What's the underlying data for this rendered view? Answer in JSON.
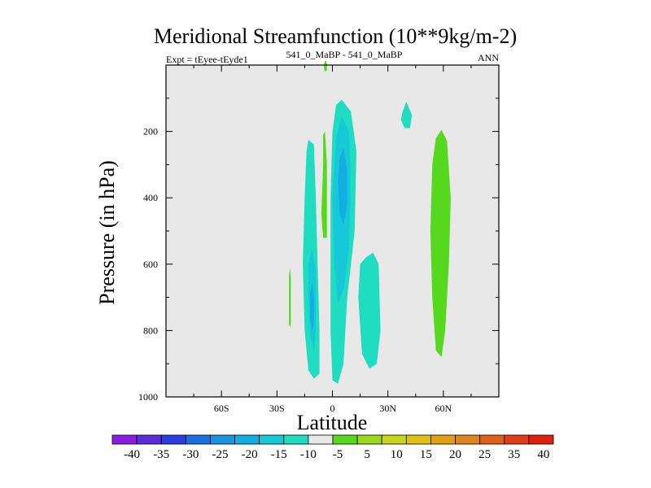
{
  "chart_data": {
    "type": "contour",
    "title": "Meridional Streamfunction (10**9kg/m-2)",
    "subtitle_left": "Expt = tEyee-tEyde1",
    "subtitle_center": "541_0_MaBP - 541_0_MaBP",
    "subtitle_right": "ANN",
    "xlabel": "Latitude",
    "ylabel": "Pressure (in hPa)",
    "xlim": [
      -90,
      90
    ],
    "ylim": [
      1000,
      0
    ],
    "x_ticks": [
      {
        "value": -60,
        "label": "60S"
      },
      {
        "value": -30,
        "label": "30S"
      },
      {
        "value": 0,
        "label": "0"
      },
      {
        "value": 30,
        "label": "30N"
      },
      {
        "value": 60,
        "label": "60N"
      }
    ],
    "y_ticks": [
      {
        "value": 200,
        "label": "200"
      },
      {
        "value": 400,
        "label": "400"
      },
      {
        "value": 600,
        "label": "600"
      },
      {
        "value": 800,
        "label": "800"
      },
      {
        "value": 1000,
        "label": "1000"
      }
    ],
    "background_color": "#e8e8e8",
    "colorbar": {
      "labels": [
        "-40",
        "-35",
        "-30",
        "-25",
        "-20",
        "-15",
        "-10",
        "-5",
        "5",
        "10",
        "15",
        "20",
        "25",
        "35",
        "40"
      ],
      "colors": [
        "#8a1ee0",
        "#5a2ed8",
        "#2c3ee0",
        "#1a6ee0",
        "#1894e0",
        "#12aee0",
        "#16c8d8",
        "#20dcc0",
        "#e8e8e8",
        "#55d81e",
        "#9ad81e",
        "#c8d41e",
        "#e0c014",
        "#e0a012",
        "#e0821e",
        "#e0601a",
        "#e03e18",
        "#e0200e"
      ]
    },
    "regions": [
      {
        "level": "-10 to -5",
        "color": "#20dcc0",
        "outline": [
          [
            -13,
            225
          ],
          [
            -10,
            240
          ],
          [
            -9,
            400
          ],
          [
            -8,
            600
          ],
          [
            -7,
            800
          ],
          [
            -7,
            930
          ],
          [
            -10,
            945
          ],
          [
            -13,
            920
          ],
          [
            -15,
            800
          ],
          [
            -16,
            600
          ],
          [
            -15,
            400
          ],
          [
            -14,
            260
          ]
        ]
      },
      {
        "level": "-10 to -5",
        "color": "#20dcc0",
        "outline": [
          [
            5,
            105
          ],
          [
            10,
            140
          ],
          [
            13,
            260
          ],
          [
            12,
            500
          ],
          [
            8,
            700
          ],
          [
            6,
            900
          ],
          [
            3,
            960
          ],
          [
            0,
            950
          ],
          [
            -1,
            800
          ],
          [
            -1,
            600
          ],
          [
            -1,
            400
          ],
          [
            0,
            200
          ],
          [
            2,
            120
          ]
        ]
      },
      {
        "level": "-10 to -5",
        "color": "#20dcc0",
        "outline": [
          [
            22,
            565
          ],
          [
            25,
            600
          ],
          [
            26,
            800
          ],
          [
            24,
            900
          ],
          [
            20,
            915
          ],
          [
            16,
            870
          ],
          [
            14,
            700
          ],
          [
            15,
            600
          ],
          [
            18,
            580
          ]
        ]
      },
      {
        "level": "-15 to -10",
        "color": "#16c8d8",
        "outline": [
          [
            5,
            155
          ],
          [
            9,
            200
          ],
          [
            10,
            350
          ],
          [
            9,
            550
          ],
          [
            6,
            680
          ],
          [
            3,
            720
          ],
          [
            1,
            600
          ],
          [
            0,
            400
          ],
          [
            2,
            220
          ]
        ]
      },
      {
        "level": "-15 to -10",
        "color": "#16c8d8",
        "outline": [
          [
            -11,
            555
          ],
          [
            -9,
            620
          ],
          [
            -9,
            800
          ],
          [
            -10,
            860
          ],
          [
            -12,
            820
          ],
          [
            -13,
            700
          ],
          [
            -13,
            600
          ]
        ]
      },
      {
        "level": "-20 to -15",
        "color": "#12aee0",
        "outline": [
          [
            6,
            250
          ],
          [
            8,
            320
          ],
          [
            8,
            420
          ],
          [
            6,
            480
          ],
          [
            4,
            450
          ],
          [
            3,
            350
          ],
          [
            4,
            280
          ]
        ]
      },
      {
        "level": "-20 to -15",
        "color": "#12aee0",
        "outline": [
          [
            -11,
            660
          ],
          [
            -10,
            700
          ],
          [
            -10,
            780
          ],
          [
            -11,
            800
          ],
          [
            -12,
            760
          ],
          [
            -12,
            690
          ]
        ]
      },
      {
        "level": "-10 to -5",
        "color": "#20dcc0",
        "outline": [
          [
            40,
            110
          ],
          [
            43,
            150
          ],
          [
            42,
            190
          ],
          [
            39,
            190
          ],
          [
            37,
            165
          ],
          [
            38,
            140
          ]
        ]
      },
      {
        "level": "5 to 10",
        "color": "#55d81e",
        "outline": [
          [
            59,
            195
          ],
          [
            62,
            230
          ],
          [
            64,
            400
          ],
          [
            63,
            600
          ],
          [
            61,
            800
          ],
          [
            59,
            880
          ],
          [
            56,
            860
          ],
          [
            54,
            700
          ],
          [
            53,
            500
          ],
          [
            54,
            300
          ],
          [
            56,
            220
          ]
        ]
      },
      {
        "level": "5 to 10",
        "color": "#55d81e",
        "outline": [
          [
            -4,
            200
          ],
          [
            -3,
            300
          ],
          [
            -3,
            450
          ],
          [
            -3,
            520
          ],
          [
            -5,
            520
          ],
          [
            -6,
            450
          ],
          [
            -5,
            300
          ],
          [
            -5,
            210
          ]
        ]
      },
      {
        "level": "5 to 10",
        "color": "#55d81e",
        "outline": [
          [
            -3.5,
            -15
          ],
          [
            -3,
            -5
          ],
          [
            -3,
            15
          ],
          [
            -4,
            20
          ],
          [
            -4.5,
            10
          ],
          [
            -4.5,
            -5
          ]
        ]
      },
      {
        "level": "5 to 10",
        "color": "#55d81e",
        "outline": [
          [
            -23,
            610
          ],
          [
            -22.5,
            640
          ],
          [
            -22.5,
            780
          ],
          [
            -23,
            790
          ],
          [
            -23.5,
            780
          ],
          [
            -23.5,
            640
          ]
        ]
      }
    ]
  }
}
